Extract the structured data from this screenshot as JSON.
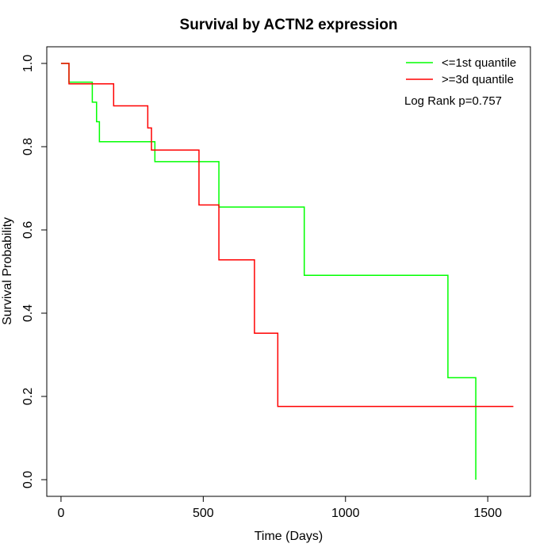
{
  "chart_data": {
    "type": "line",
    "title": "Survival by ACTN2 expression",
    "xlabel": "Time (Days)",
    "ylabel": "Survival Probability",
    "xlim": [
      -50,
      1650
    ],
    "ylim": [
      -0.04,
      1.04
    ],
    "x_ticks": [
      0,
      500,
      1000,
      1500
    ],
    "y_ticks": [
      0.0,
      0.2,
      0.4,
      0.6,
      0.8,
      1.0
    ],
    "x_tick_labels": [
      "0",
      "500",
      "1000",
      "1500"
    ],
    "y_tick_labels": [
      "0.0",
      "0.2",
      "0.4",
      "0.6",
      "0.8",
      "1.0"
    ],
    "grid": false,
    "legend_position": "top-right",
    "annotation": "Log Rank p=0.757",
    "series": [
      {
        "name": "<=1st quantile",
        "color": "#00ff00",
        "step": "post",
        "x": [
          0,
          28,
          110,
          125,
          135,
          155,
          330,
          555,
          855,
          1360,
          1458,
          1458
        ],
        "y": [
          1.0,
          0.955,
          0.907,
          0.86,
          0.812,
          0.812,
          0.764,
          0.655,
          0.491,
          0.245,
          0.0,
          0.0
        ]
      },
      {
        "name": ">=3d quantile",
        "color": "#ff0000",
        "step": "post",
        "x": [
          0,
          28,
          185,
          305,
          318,
          485,
          555,
          680,
          762,
          1590
        ],
        "y": [
          1.0,
          0.951,
          0.898,
          0.845,
          0.792,
          0.66,
          0.528,
          0.352,
          0.176,
          0.176
        ]
      }
    ]
  }
}
